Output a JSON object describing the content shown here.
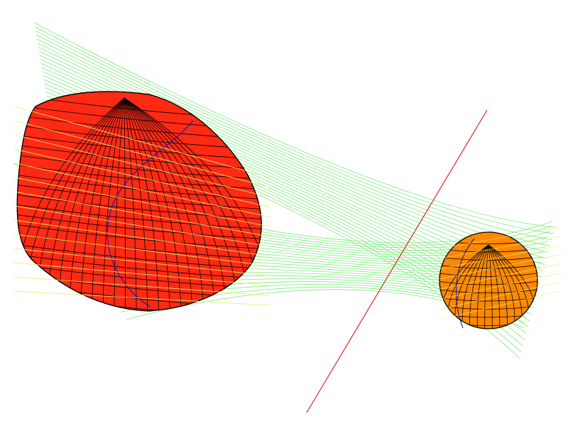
{
  "scene": {
    "background_color": "#ffffff",
    "objects": [
      {
        "name": "large-red-body",
        "shape": "ellipsoid-mesh",
        "fill": "#ff2a14",
        "grid_line_color": "#000000",
        "meridian_color": "#1a1aa8"
      },
      {
        "name": "small-orange-sphere",
        "shape": "sphere-mesh",
        "fill": "#ff8800",
        "grid_line_color": "#000000",
        "meridian_color": "#1a1aa8"
      },
      {
        "name": "hyperboloid-rulings",
        "shape": "line-family",
        "stroke": "#7ee87e",
        "highlight_stroke": "#e8f070"
      },
      {
        "name": "axis-line",
        "shape": "line",
        "stroke": "#dd0000"
      }
    ]
  }
}
